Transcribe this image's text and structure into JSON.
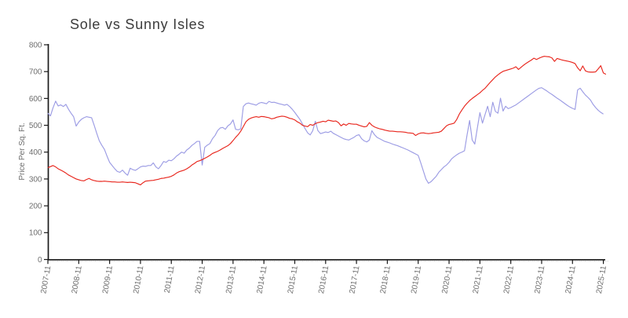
{
  "chart_data": {
    "type": "line",
    "title": "Sole vs Sunny Isles",
    "ylabel": "Price Per Sq. Ft.",
    "xlabel": "",
    "x_start": "2007-11",
    "x_interval": "monthly",
    "x_tick_labels": [
      "2007-11",
      "2008-11",
      "2009-11",
      "2010-11",
      "2011-11",
      "2012-11",
      "2013-11",
      "2014-11",
      "2015-11",
      "2016-11",
      "2017-11",
      "2018-11",
      "2019-11",
      "2020-11",
      "2021-11",
      "2022-11",
      "2023-11",
      "2024-11",
      "2025-11"
    ],
    "ylim": [
      0,
      800
    ],
    "yticks": [
      0,
      100,
      200,
      300,
      400,
      500,
      600,
      700,
      800
    ],
    "grid": false,
    "legend": "none",
    "series": [
      {
        "name": "Sunny Isles",
        "color": "#9c9ce4",
        "values": [
          545,
          535,
          565,
          590,
          572,
          576,
          570,
          578,
          560,
          545,
          532,
          497,
          512,
          522,
          528,
          532,
          530,
          528,
          500,
          470,
          442,
          425,
          410,
          385,
          362,
          350,
          338,
          328,
          325,
          333,
          322,
          314,
          340,
          335,
          332,
          338,
          345,
          348,
          347,
          350,
          350,
          360,
          345,
          338,
          350,
          365,
          362,
          370,
          368,
          375,
          385,
          392,
          400,
          396,
          408,
          415,
          425,
          432,
          440,
          440,
          352,
          418,
          426,
          432,
          450,
          462,
          480,
          490,
          492,
          485,
          498,
          505,
          520,
          485,
          483,
          487,
          570,
          580,
          583,
          580,
          578,
          575,
          582,
          585,
          583,
          580,
          589,
          585,
          586,
          583,
          580,
          578,
          575,
          578,
          570,
          560,
          548,
          535,
          522,
          505,
          488,
          472,
          464,
          480,
          515,
          480,
          469,
          472,
          475,
          473,
          478,
          470,
          465,
          460,
          455,
          450,
          447,
          445,
          450,
          455,
          462,
          465,
          450,
          442,
          438,
          445,
          480,
          465,
          455,
          450,
          445,
          440,
          437,
          434,
          430,
          427,
          424,
          420,
          416,
          412,
          408,
          403,
          398,
          393,
          388,
          360,
          330,
          300,
          284,
          290,
          300,
          310,
          325,
          335,
          345,
          352,
          362,
          375,
          383,
          390,
          396,
          400,
          405,
          464,
          518,
          445,
          430,
          490,
          547,
          508,
          540,
          571,
          532,
          586,
          552,
          545,
          601,
          553,
          571,
          562,
          566,
          571,
          576,
          583,
          590,
          597,
          604,
          611,
          618,
          625,
          632,
          638,
          640,
          634,
          628,
          621,
          615,
          608,
          601,
          595,
          588,
          581,
          574,
          568,
          563,
          559,
          632,
          638,
          625,
          613,
          604,
          594,
          578,
          566,
          556,
          548,
          542
        ]
      },
      {
        "name": "Sole",
        "color": "#e8261d",
        "values": [
          342,
          346,
          350,
          345,
          338,
          333,
          328,
          322,
          315,
          310,
          305,
          300,
          297,
          294,
          293,
          298,
          302,
          297,
          294,
          292,
          291,
          291,
          292,
          291,
          290,
          289,
          289,
          288,
          288,
          289,
          288,
          287,
          288,
          287,
          286,
          282,
          278,
          286,
          292,
          293,
          294,
          295,
          297,
          299,
          302,
          303,
          305,
          307,
          310,
          315,
          322,
          327,
          330,
          333,
          338,
          344,
          352,
          358,
          365,
          368,
          372,
          377,
          382,
          388,
          395,
          399,
          403,
          408,
          414,
          419,
          424,
          432,
          443,
          455,
          465,
          478,
          495,
          513,
          522,
          527,
          530,
          532,
          530,
          533,
          532,
          530,
          528,
          524,
          526,
          530,
          532,
          534,
          533,
          530,
          526,
          524,
          520,
          513,
          508,
          500,
          497,
          495,
          503,
          500,
          506,
          510,
          512,
          515,
          513,
          519,
          517,
          515,
          516,
          510,
          498,
          505,
          500,
          507,
          505,
          504,
          504,
          500,
          497,
          494,
          496,
          510,
          500,
          494,
          490,
          487,
          485,
          482,
          480,
          478,
          478,
          477,
          476,
          476,
          475,
          474,
          472,
          471,
          470,
          462,
          468,
          471,
          472,
          470,
          469,
          470,
          472,
          473,
          474,
          478,
          488,
          498,
          503,
          505,
          508,
          522,
          542,
          557,
          571,
          582,
          592,
          600,
          607,
          614,
          621,
          630,
          638,
          649,
          660,
          670,
          680,
          688,
          695,
          701,
          704,
          707,
          710,
          713,
          718,
          708,
          716,
          724,
          731,
          737,
          743,
          750,
          745,
          750,
          754,
          757,
          756,
          755,
          751,
          738,
          749,
          746,
          743,
          741,
          739,
          737,
          734,
          730,
          714,
          703,
          721,
          703,
          699,
          698,
          698,
          699,
          710,
          722,
          695,
          690
        ]
      }
    ]
  }
}
